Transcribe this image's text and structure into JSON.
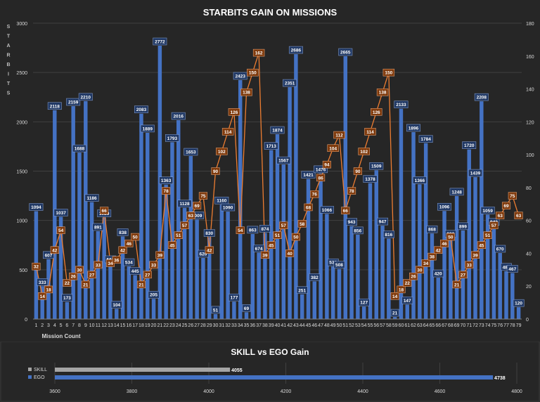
{
  "chart_data": [
    {
      "type": "bar",
      "title": "STARBITS GAIN ON MISSIONS",
      "xlabel": "Mission Count",
      "ylabel": "STARBITS",
      "ylim": [
        0,
        3000
      ],
      "y_ticks": [
        0,
        500,
        1000,
        1500,
        2000,
        2500,
        3000
      ],
      "y2lim": [
        0,
        180
      ],
      "y2_ticks": [
        0,
        20,
        40,
        60,
        80,
        100,
        120,
        140,
        160,
        180
      ],
      "grid": true,
      "categories": [
        1,
        2,
        3,
        4,
        5,
        6,
        7,
        8,
        9,
        10,
        11,
        12,
        13,
        14,
        15,
        16,
        17,
        18,
        19,
        20,
        21,
        22,
        23,
        24,
        25,
        26,
        27,
        28,
        29,
        30,
        31,
        32,
        33,
        34,
        35,
        36,
        37,
        38,
        39,
        40,
        41,
        42,
        43,
        44,
        45,
        46,
        47,
        48,
        49,
        50,
        51,
        52,
        53,
        54,
        55,
        56,
        57,
        58,
        59,
        60,
        61,
        62,
        63,
        64,
        65,
        66,
        67,
        68,
        69,
        70,
        71,
        72,
        73,
        74,
        75,
        76,
        77,
        78,
        79
      ],
      "series": [
        {
          "kind": "bar",
          "axis": "left",
          "color": "#4472c4",
          "values": [
            1094,
            333,
            607,
            2118,
            1037,
            173,
            2159,
            1688,
            2210,
            1186,
            891,
            1029,
            563,
            104,
            838,
            534,
            445,
            2083,
            1889,
            205,
            2772,
            1363,
            1793,
            2016,
            1128,
            1653,
            1009,
            620,
            830,
            51,
            1160,
            1090,
            177,
            2423,
            69,
            863,
            674,
            874,
            1713,
            1874,
            1567,
            2351,
            2686,
            251,
            1421,
            382,
            1476,
            1066,
            533,
            508,
            2665,
            943,
            856,
            127,
            1378,
            1509,
            947,
            816,
            21,
            2133,
            147,
            1896,
            1366,
            1784,
            868,
            420,
            1096,
            822,
            1248,
            899,
            1720,
            1439,
            2208,
            1059,
            943,
            670,
            486,
            467,
            120
          ]
        },
        {
          "kind": "line",
          "axis": "right",
          "color": "#ed7d31",
          "values": [
            32,
            14,
            18,
            42,
            54,
            22,
            26,
            30,
            21,
            27,
            33,
            66,
            34,
            36,
            42,
            46,
            50,
            21,
            27,
            33,
            39,
            78,
            45,
            51,
            57,
            63,
            69,
            75,
            42,
            90,
            102,
            114,
            126,
            54,
            138,
            150,
            162,
            39,
            45,
            51,
            57,
            40,
            50,
            58,
            68,
            76,
            86,
            94,
            104,
            112,
            66,
            78,
            90,
            102,
            114,
            126,
            138,
            150,
            14,
            18,
            22,
            26,
            30,
            34,
            38,
            42,
            46,
            50,
            21,
            27,
            33,
            39,
            45,
            51,
            57,
            63,
            69,
            75,
            63
          ]
        }
      ]
    },
    {
      "type": "bar",
      "orientation": "horizontal",
      "title": "SKILL vs EGO Gain",
      "categories": [
        "SKILL",
        "EGO"
      ],
      "values": [
        4055,
        4738
      ],
      "colors": [
        "#a5a5a5",
        "#4472c4"
      ],
      "xlim": [
        3600,
        4800
      ],
      "x_ticks": [
        3600,
        3800,
        4000,
        4200,
        4400,
        4600,
        4800
      ],
      "legend": [
        "SKILL",
        "EGO"
      ],
      "legend_position": "left"
    }
  ]
}
